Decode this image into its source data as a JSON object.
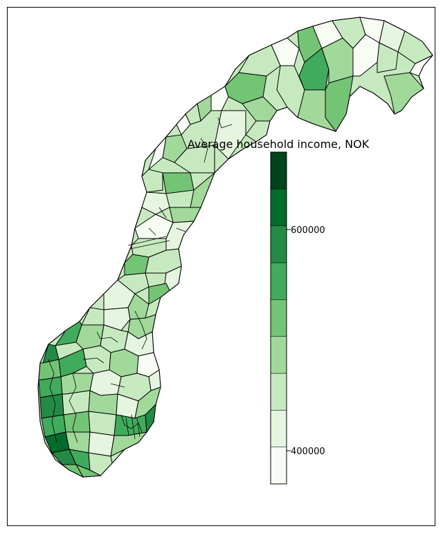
{
  "map": {
    "colorbar": {
      "title": "Average household income, NOK",
      "ticks": [
        {
          "label": "600000",
          "value": 600000
        },
        {
          "label": "400000",
          "value": 400000
        }
      ],
      "range": [
        370000,
        670000
      ],
      "bins": 9,
      "colors": [
        "#f7fcf5",
        "#e5f5e0",
        "#c7e9c0",
        "#a1d99b",
        "#74c476",
        "#41ab5d",
        "#238b45",
        "#006d2c",
        "#00441b"
      ]
    },
    "palette": {
      "outline": "#000000",
      "land_greens": [
        "#f7fcf5",
        "#e5f5e0",
        "#c7e9c0",
        "#a1d99b",
        "#74c476",
        "#41ab5d",
        "#238b45",
        "#006d2c"
      ]
    }
  },
  "chart_data": {
    "type": "choropleth",
    "title": "Average household income, NOK",
    "colorbar_ticks": [
      400000,
      600000
    ],
    "colorbar_range": [
      370000,
      670000
    ],
    "colorbar_bins": 9
  }
}
